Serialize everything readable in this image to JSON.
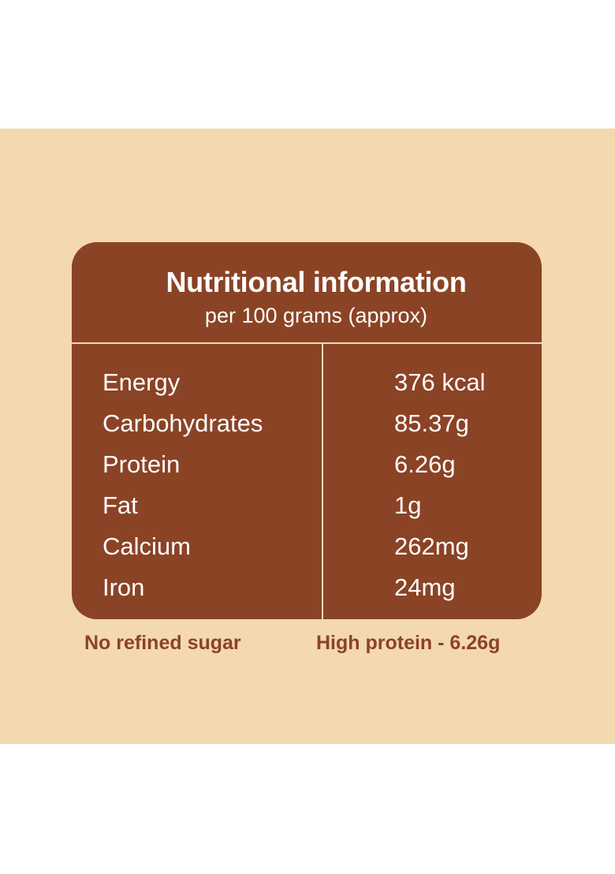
{
  "header": {
    "title": "Nutritional information",
    "subtitle": "per 100 grams (approx)"
  },
  "rows": [
    {
      "label": "Energy",
      "value": "376 kcal"
    },
    {
      "label": "Carbohydrates",
      "value": "85.37g"
    },
    {
      "label": "Protein",
      "value": "6.26g"
    },
    {
      "label": "Fat",
      "value": "1g"
    },
    {
      "label": "Calcium",
      "value": "262mg"
    },
    {
      "label": "Iron",
      "value": "24mg"
    }
  ],
  "footer": {
    "left": "No refined sugar",
    "right": "High protein - 6.26g"
  },
  "colors": {
    "background": "#f4d8b0",
    "card": "#8b4325",
    "text_on_card": "#ffffff"
  }
}
